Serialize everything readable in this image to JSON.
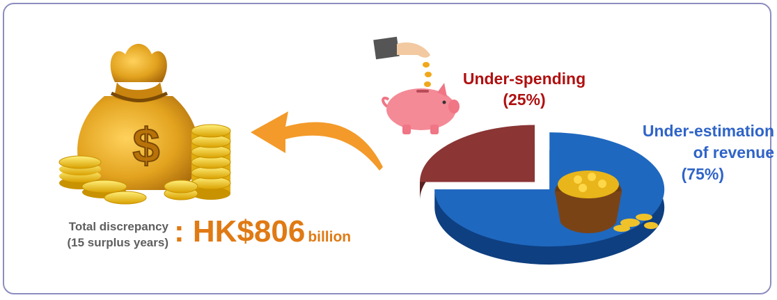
{
  "chart_data": {
    "type": "pie",
    "title": "",
    "slices": [
      {
        "label": "Under-spending",
        "value": 25,
        "value_label": "(25%)",
        "color": "#8b3535"
      },
      {
        "label": "Under-estimation of revenue",
        "value": 75,
        "value_label": "(75%)",
        "color": "#1f68bf"
      }
    ],
    "style": "3d-exploded"
  },
  "labels": {
    "underspend_name": "Under-spending",
    "underspend_pct": "(25%)",
    "underest_line1": "Under-estimation",
    "underest_line2": "of revenue",
    "underest_pct": "(75%)"
  },
  "discrepancy": {
    "label_line1": "Total discrepancy",
    "label_line2": "(15 surplus years)",
    "amount": ": HK$806",
    "unit": "billion"
  },
  "colors": {
    "accent_orange": "#e07a14",
    "underspend_red": "#b01010",
    "underest_blue": "#2f64c8",
    "frame_border": "#8c8cc0"
  },
  "icons": {
    "bag": "money-bag-icon",
    "piggy": "piggy-bank-icon",
    "arrow": "curved-arrow-icon",
    "coins": "coin-pot-icon"
  }
}
